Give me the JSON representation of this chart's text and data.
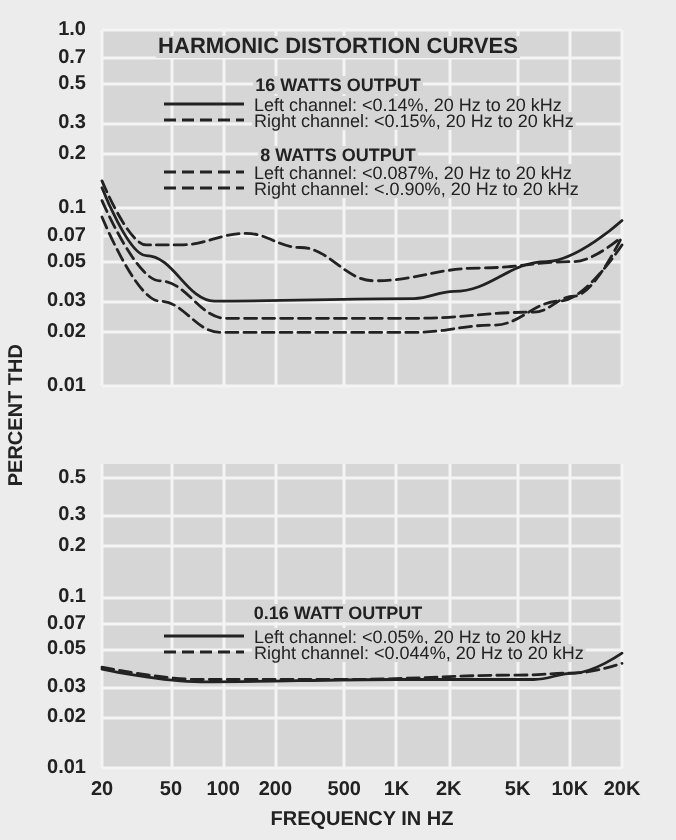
{
  "chart_data": [
    {
      "type": "line",
      "title": "HARMONIC DISTORTION CURVES",
      "ylabel": "PERCENT THD",
      "annotations": [
        "16 WATTS OUTPUT",
        "8 WATTS OUTPUT"
      ],
      "log": "xy",
      "grid": true,
      "legend": "top",
      "marker": "none",
      "tick_labels": "y",
      "xlim": [
        20,
        20000
      ],
      "xticks": [
        {
          "value": 20,
          "label": null
        },
        {
          "value": 50,
          "label": null
        },
        {
          "value": 100,
          "label": null
        },
        {
          "value": 200,
          "label": null
        },
        {
          "value": 500,
          "label": null
        },
        {
          "value": 1000,
          "label": null
        },
        {
          "value": 2000,
          "label": null
        },
        {
          "value": 5000,
          "label": null
        },
        {
          "value": 10000,
          "label": null
        },
        {
          "value": 20000,
          "label": null
        }
      ],
      "ylim": [
        0.01,
        1
      ],
      "yticks": [
        {
          "value": 1,
          "label": "1.0"
        },
        0.7,
        0.5,
        0.3,
        0.2,
        0.1,
        0.07,
        0.05,
        0.03,
        0.02,
        0.01
      ],
      "series": [
        {
          "name": "Left channel: <0.14%, 20 Hz to 20 kHz",
          "color": "#222222",
          "line_style": "solid",
          "x": [
            20,
            36,
            89,
            1260,
            2150,
            7300,
            20000
          ],
          "values": [
            0.13,
            0.054,
            0.03,
            0.031,
            0.034,
            0.05,
            0.085
          ]
        },
        {
          "name": "Right channel: <0.15%, 20 Hz to 20 kHz",
          "color": "#222222",
          "line_style": "dashed",
          "x": [
            20,
            36,
            56,
            136,
            278,
            743,
            3000,
            10600,
            20000
          ],
          "values": [
            0.142,
            0.062,
            0.062,
            0.072,
            0.06,
            0.039,
            0.046,
            0.05,
            0.069
          ]
        },
        {
          "name": "Left channel: <0.087%, 20 Hz to 20 kHz",
          "color": "#222222",
          "line_style": "dashed",
          "x": [
            20,
            43,
            104,
            1260,
            6200,
            10600,
            20000
          ],
          "values": [
            0.11,
            0.039,
            0.024,
            0.024,
            0.026,
            0.032,
            0.069
          ]
        },
        {
          "name": "Right channel: <.0.90%, 20 Hz to 20 kHz",
          "color": "#222222",
          "line_style": "dashed",
          "x": [
            20,
            43,
            96,
            1260,
            3660,
            8800,
            20000
          ],
          "values": [
            0.089,
            0.03,
            0.02,
            0.02,
            0.022,
            0.03,
            0.062
          ]
        }
      ]
    },
    {
      "type": "line",
      "xlabel": "FREQUENCY IN HZ",
      "annotations": [
        "0.16 WATT OUTPUT"
      ],
      "log": "xy",
      "grid": true,
      "legend": "bottom",
      "marker": "none",
      "xlim": [
        20,
        20000
      ],
      "xticks": [
        20,
        50,
        100,
        200,
        500,
        {
          "value": 1000,
          "label": "1K"
        },
        {
          "value": 2000,
          "label": "2K"
        },
        {
          "value": 5000,
          "label": "5K"
        },
        {
          "value": 10000,
          "label": "10K"
        },
        {
          "value": 20000,
          "label": "20K"
        }
      ],
      "ylim": [
        0.01,
        0.6
      ],
      "yticks": [
        0.5,
        0.3,
        0.2,
        0.1,
        0.07,
        0.05,
        0.03,
        0.02,
        0.01
      ],
      "series": [
        {
          "name": "Left channel: <0.05%, 20 Hz to 20 kHz",
          "color": "#222222",
          "line_style": "solid",
          "x": [
            20,
            74,
            1000,
            6200,
            10600,
            20000
          ],
          "values": [
            0.038,
            0.032,
            0.033,
            0.033,
            0.036,
            0.047
          ]
        },
        {
          "name": "Right channel: <0.044%, 20 Hz to 20 kHz",
          "color": "#222222",
          "line_style": "dashed",
          "x": [
            20,
            74,
            500,
            5000,
            10600,
            20000
          ],
          "values": [
            0.039,
            0.033,
            0.033,
            0.035,
            0.036,
            0.041
          ]
        }
      ]
    }
  ]
}
